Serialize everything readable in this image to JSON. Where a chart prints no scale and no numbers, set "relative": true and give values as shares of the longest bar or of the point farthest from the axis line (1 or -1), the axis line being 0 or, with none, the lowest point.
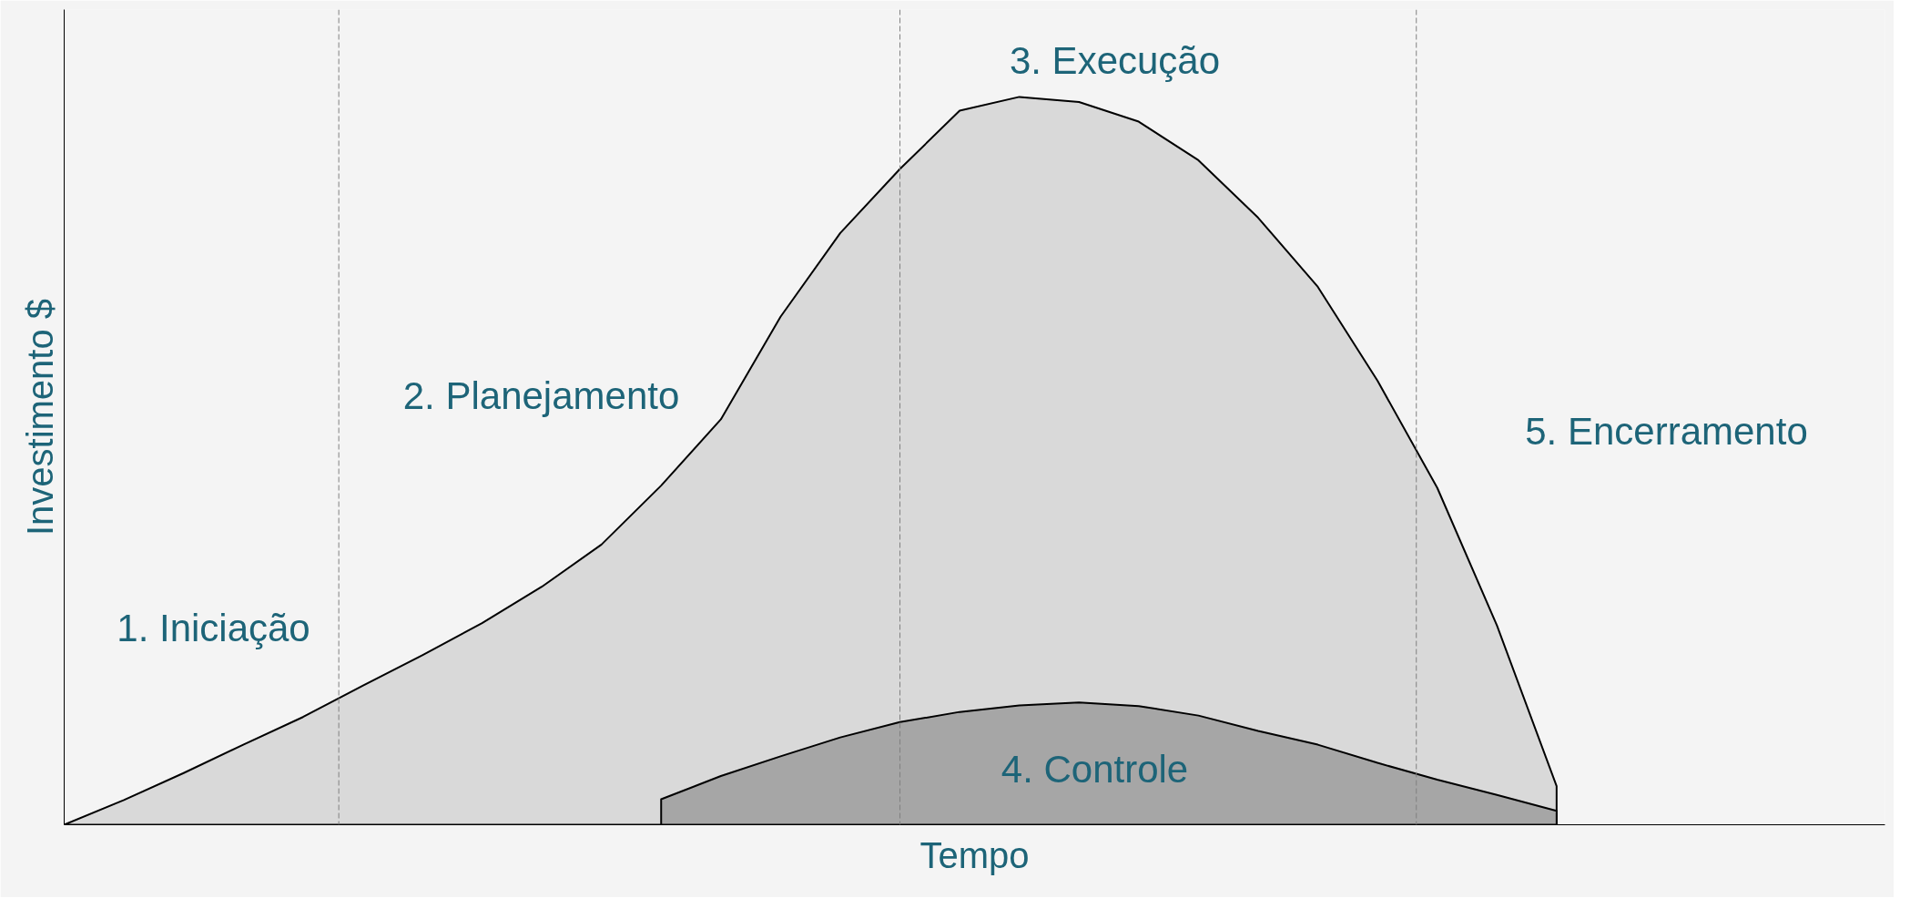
{
  "chart_data": {
    "type": "area",
    "relative": true,
    "xlabel": "Tempo",
    "ylabel": "Investimento $",
    "categories": [
      null,
      null,
      null,
      null,
      null,
      null,
      null,
      null,
      null,
      null,
      null,
      null,
      null,
      null,
      null,
      null,
      null,
      null,
      null,
      null,
      null,
      null,
      null,
      null,
      null,
      null
    ],
    "series": [
      {
        "color": "#d9d9d9",
        "values": [
          0,
          0.034,
          0.071,
          0.11,
          0.148,
          0.191,
          0.233,
          0.277,
          0.327,
          0.385,
          0.466,
          0.557,
          0.698,
          0.813,
          0.901,
          0.981,
          1,
          0.993,
          0.966,
          0.913,
          0.834,
          0.739,
          0.61,
          0.463,
          0.274,
          0.053
        ]
      },
      {
        "color": "#a6a6a6",
        "values": [
          null,
          null,
          null,
          null,
          null,
          null,
          null,
          null,
          null,
          null,
          0.035,
          0.067,
          0.094,
          0.12,
          0.141,
          0.155,
          0.164,
          0.168,
          0.163,
          0.15,
          0.129,
          0.11,
          0.085,
          0.062,
          0.041,
          0.019
        ]
      }
    ],
    "annotations": [
      "1. Iniciação",
      "2. Planejamento",
      "3. Execução",
      "4. Controle",
      "5. Encerramento"
    ]
  }
}
